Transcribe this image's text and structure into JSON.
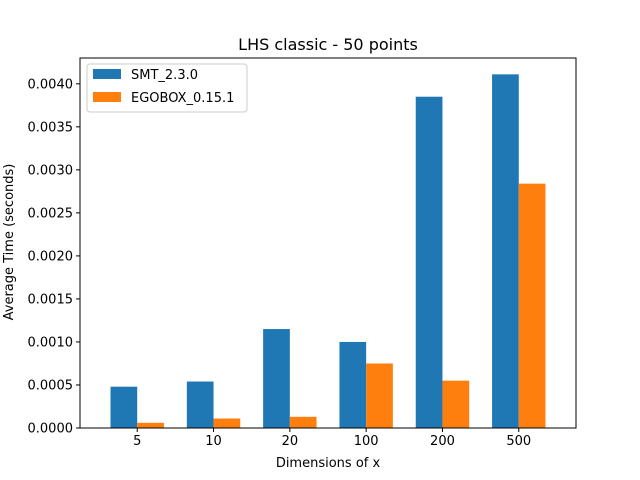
{
  "chart_data": {
    "type": "bar",
    "title": "LHS classic - 50 points",
    "xlabel": "Dimensions of x",
    "ylabel": "Average Time (seconds)",
    "categories": [
      "5",
      "10",
      "20",
      "100",
      "200",
      "500"
    ],
    "ylim": [
      0,
      0.0043
    ],
    "yticks": [
      "0.0000",
      "0.0005",
      "0.0010",
      "0.0015",
      "0.0020",
      "0.0025",
      "0.0030",
      "0.0035",
      "0.0040"
    ],
    "grid": false,
    "legend_position": "top-left",
    "series": [
      {
        "name": "SMT_2.3.0",
        "color": "#1f77b4",
        "values": [
          0.00048,
          0.00054,
          0.00115,
          0.001,
          0.00385,
          0.00411
        ]
      },
      {
        "name": "EGOBOX_0.15.1",
        "color": "#ff7f0e",
        "values": [
          6e-05,
          0.00011,
          0.00013,
          0.00075,
          0.00055,
          0.00284
        ]
      }
    ]
  }
}
